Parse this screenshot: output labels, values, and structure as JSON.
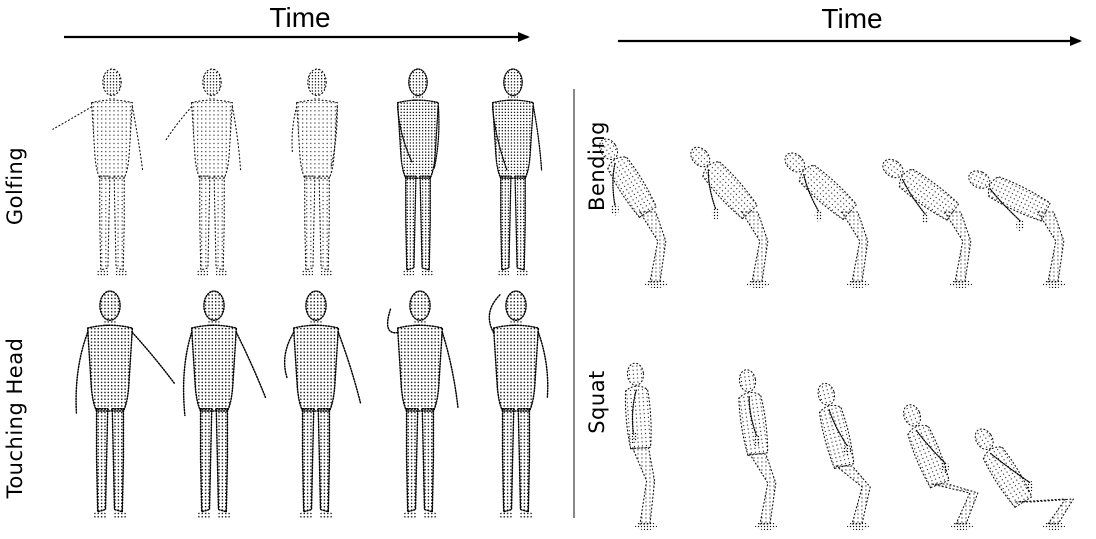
{
  "panels": [
    {
      "time_label": "Time",
      "rows": [
        {
          "label": "Golfing",
          "frames": 5
        },
        {
          "label": "Touching Head",
          "frames": 5
        }
      ]
    },
    {
      "time_label": "Time",
      "rows": [
        {
          "label": "Bending",
          "frames": 5
        },
        {
          "label": "Squat",
          "frames": 5
        }
      ]
    }
  ],
  "colors": {
    "ink": "#000000",
    "background": "#ffffff",
    "divider": "#555555"
  }
}
